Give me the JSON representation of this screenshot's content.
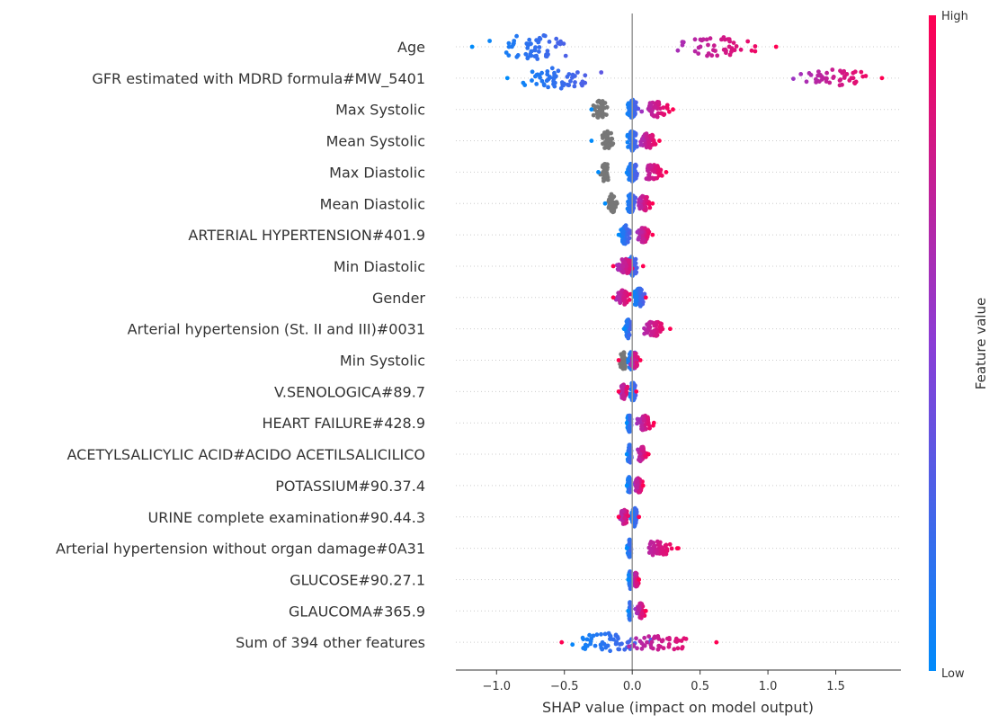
{
  "chart_data": {
    "type": "scatter",
    "subtype": "shap-beeswarm",
    "title": "",
    "xlabel": "SHAP value (impact on model output)",
    "ylabel": "",
    "xlim": [
      -1.3,
      1.98
    ],
    "xticks": [
      -1.0,
      -0.5,
      0.0,
      0.5,
      1.0,
      1.5
    ],
    "xtick_labels": [
      "−1.0",
      "−0.5",
      "0.0",
      "0.5",
      "1.0",
      "1.5"
    ],
    "grid": false,
    "colorbar": {
      "label": "Feature value",
      "high_label": "High",
      "low_label": "Low",
      "low_color": "#008bfb",
      "high_color": "#ff0052",
      "missing_color": "#777777"
    },
    "features": [
      {
        "name": "Age",
        "min": -1.18,
        "max": 1.06,
        "low_region": [
          -1.15,
          -0.3
        ],
        "high_region": [
          0.2,
          1.05
        ]
      },
      {
        "name": "GFR estimated with MDRD formula#MW_5401",
        "min": -0.92,
        "max": 1.84,
        "low_region": [
          -0.92,
          -0.2
        ],
        "high_region": [
          1.15,
          1.84
        ]
      },
      {
        "name": "Max Systolic",
        "min": -0.3,
        "max": 0.3,
        "low_region": [
          -0.05,
          0.05
        ],
        "high_region": [
          0.05,
          0.3
        ],
        "missing_region": [
          -0.3,
          -0.17
        ]
      },
      {
        "name": "Mean Systolic",
        "min": -0.3,
        "max": 0.2,
        "low_region": [
          -0.05,
          0.05
        ],
        "high_region": [
          0.03,
          0.2
        ],
        "missing_region": [
          -0.25,
          -0.12
        ]
      },
      {
        "name": "Max Diastolic",
        "min": -0.25,
        "max": 0.25,
        "low_region": [
          -0.05,
          0.05
        ],
        "high_region": [
          0.03,
          0.25
        ],
        "missing_region": [
          -0.25,
          -0.15
        ]
      },
      {
        "name": "Mean Diastolic",
        "min": -0.2,
        "max": 0.15,
        "low_region": [
          -0.05,
          0.03
        ],
        "high_region": [
          0.02,
          0.15
        ],
        "missing_region": [
          -0.2,
          -0.1
        ]
      },
      {
        "name": "ARTERIAL HYPERTENSION#401.9",
        "min": -0.1,
        "max": 0.15,
        "low_region": [
          -0.1,
          0.0
        ],
        "high_region": [
          0.02,
          0.15
        ]
      },
      {
        "name": "Min Diastolic",
        "min": -0.14,
        "max": 0.08,
        "low_region": [
          -0.05,
          0.05
        ],
        "high_region": [
          -0.14,
          0.05
        ]
      },
      {
        "name": "Gender",
        "min": -0.14,
        "max": 0.1,
        "low_region": [
          0.0,
          0.1
        ],
        "high_region": [
          -0.14,
          0.0
        ]
      },
      {
        "name": "Arterial hypertension (St. II and III)#0031",
        "min": -0.06,
        "max": 0.28,
        "low_region": [
          -0.06,
          0.0
        ],
        "high_region": [
          0.02,
          0.28
        ]
      },
      {
        "name": "Min Systolic",
        "min": -0.1,
        "max": 0.06,
        "low_region": [
          -0.05,
          0.05
        ],
        "high_region": [
          -0.02,
          0.06
        ],
        "missing_region": [
          -0.1,
          -0.03
        ]
      },
      {
        "name": "V.SENOLOGICA#89.7",
        "min": -0.1,
        "max": 0.03,
        "low_region": [
          -0.02,
          0.03
        ],
        "high_region": [
          -0.1,
          -0.02
        ]
      },
      {
        "name": "HEART FAILURE#428.9",
        "min": -0.04,
        "max": 0.16,
        "low_region": [
          -0.04,
          0.0
        ],
        "high_region": [
          0.02,
          0.16
        ]
      },
      {
        "name": "ACETYLSALICYLIC ACID#ACIDO ACETILSALICILICO",
        "min": -0.04,
        "max": 0.12,
        "low_region": [
          -0.04,
          0.0
        ],
        "high_region": [
          0.02,
          0.12
        ]
      },
      {
        "name": "POTASSIUM#90.37.4",
        "min": -0.04,
        "max": 0.08,
        "low_region": [
          -0.04,
          0.0
        ],
        "high_region": [
          0.01,
          0.08
        ]
      },
      {
        "name": "URINE complete examination#90.44.3",
        "min": -0.1,
        "max": 0.05,
        "low_region": [
          -0.02,
          0.05
        ],
        "high_region": [
          -0.1,
          -0.02
        ]
      },
      {
        "name": "Arterial hypertension without organ damage#0A31",
        "min": -0.04,
        "max": 0.34,
        "low_region": [
          -0.04,
          0.0
        ],
        "high_region": [
          0.02,
          0.34
        ]
      },
      {
        "name": "GLUCOSE#90.27.1",
        "min": -0.03,
        "max": 0.05,
        "low_region": [
          -0.03,
          0.0
        ],
        "high_region": [
          0.01,
          0.05
        ]
      },
      {
        "name": "GLAUCOMA#365.9",
        "min": -0.03,
        "max": 0.1,
        "low_region": [
          -0.03,
          0.0
        ],
        "high_region": [
          0.02,
          0.1
        ]
      },
      {
        "name": "Sum of 394 other features",
        "min": -0.52,
        "max": 0.62,
        "low_region": [
          -0.5,
          0.2
        ],
        "high_region": [
          -0.2,
          0.62
        ]
      }
    ]
  }
}
